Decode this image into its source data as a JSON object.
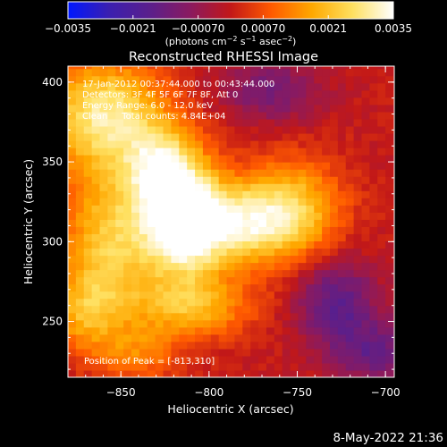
{
  "chart_data": {
    "type": "heatmap",
    "title": "Reconstructed RHESSI Image",
    "xlabel": "Heliocentric X (arcsec)",
    "ylabel": "Heliocentric Y (arcsec)",
    "xlim": [
      -880,
      -695
    ],
    "ylim": [
      215,
      410
    ],
    "x_ticks": [
      -850,
      -800,
      -750,
      -700
    ],
    "x_tick_labels": [
      "−850",
      "−800",
      "−750",
      "−700"
    ],
    "y_ticks": [
      250,
      300,
      350,
      400
    ],
    "y_tick_labels": [
      "250",
      "300",
      "350",
      "400"
    ],
    "colorbar": {
      "range": [
        -0.0035,
        0.0035
      ],
      "ticks": [
        -0.0035,
        -0.0021,
        -0.0007,
        0.0007,
        0.0021,
        0.0035
      ],
      "tick_labels": [
        "−0.0035",
        "−0.0021",
        "−0.00070",
        "0.00070",
        "0.0021",
        "0.0035"
      ],
      "unit_label": "(photons cm",
      "unit_exp1": "−2",
      "unit_mid": " s",
      "unit_exp2": "−1",
      "unit_mid2": " asec",
      "unit_exp3": "−2",
      "unit_end": ")",
      "colors": [
        "#0018ff",
        "#3a1fb0",
        "#5a1f8c",
        "#8a1a60",
        "#c21818",
        "#ff5a00",
        "#ffa800",
        "#ffe060",
        "#ffffff"
      ]
    },
    "annotations": {
      "time_range": "17-Jan-2012 00:37:44.000 to 00:43:44.000",
      "detectors": "Detectors: 3F 4F 5F 6F 7F 8F, Att 0",
      "energy_range": "Energy Range: 6.0 - 12.0 keV",
      "method_counts": "Clean     Total counts: 4.84E+04",
      "peak": "Position of Peak = [-813,310]"
    },
    "peak": [
      -813,
      310
    ],
    "grid": false,
    "legend": "colorbar-top"
  },
  "footer": {
    "timestamp": "8-May-2022 21:36"
  }
}
